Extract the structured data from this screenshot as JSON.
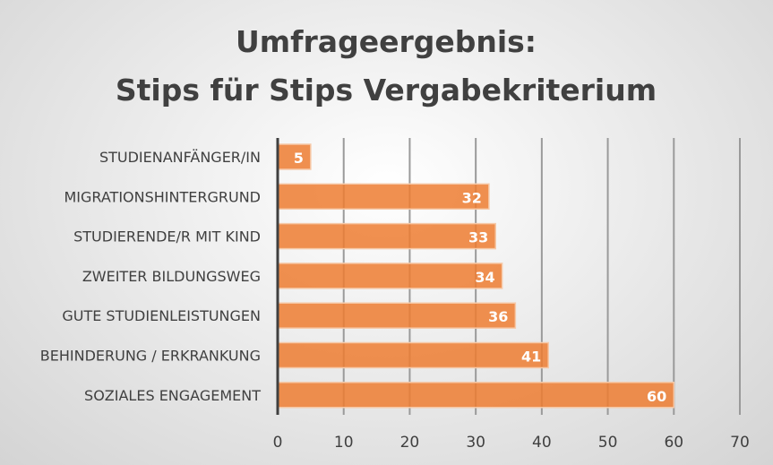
{
  "chart_data": {
    "type": "bar",
    "orientation": "horizontal",
    "title": [
      "Umfrageergebnis:",
      "Stips für Stips Vergabekriterium"
    ],
    "categories": [
      "STUDIENANFÄNGER/IN",
      "MIGRATIONSHINTERGRUND",
      "STUDIERENDE/R MIT KIND",
      "ZWEITER BILDUNGSWEG",
      "GUTE STUDIENLEISTUNGEN",
      "BEHINDERUNG / ERKRANKUNG",
      "SOZIALES ENGAGEMENT"
    ],
    "values": [
      5,
      32,
      33,
      34,
      36,
      41,
      60
    ],
    "xlim": [
      0,
      70
    ],
    "xticks": [
      "0",
      "10",
      "20",
      "30",
      "40",
      "50",
      "60",
      "70"
    ],
    "grid": true,
    "bar_color": "#ED7D31",
    "xlabel": "",
    "ylabel": ""
  }
}
